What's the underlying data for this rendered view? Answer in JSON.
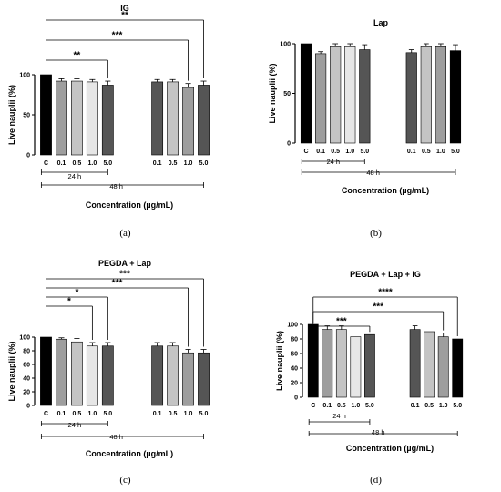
{
  "chart_data": [
    {
      "type": "bar",
      "panel_label": "(a)",
      "title": "IG",
      "ylabel": "Live nauplii (%)",
      "xlabel": "Concentration (µg/mL)",
      "ylim": [
        0,
        100
      ],
      "yticks": [
        0,
        50,
        100
      ],
      "groups": [
        {
          "label": "",
          "categories": [
            "C"
          ],
          "values": [
            100
          ],
          "errors": [
            0
          ],
          "colors": [
            "#000000"
          ]
        },
        {
          "label": "24 h",
          "categories": [
            "0.1",
            "0.5",
            "1.0",
            "5.0"
          ],
          "values": [
            92,
            92,
            91,
            87
          ],
          "errors": [
            3,
            3,
            3,
            5
          ],
          "colors": [
            "#9e9e9e",
            "#c4c4c4",
            "#e6e6e6",
            "#555555"
          ]
        },
        {
          "label": "48 h",
          "categories": [
            "0.1",
            "0.5",
            "1.0",
            "5.0"
          ],
          "values": [
            91,
            91,
            84,
            87
          ],
          "errors": [
            3,
            3,
            5,
            5
          ],
          "colors": [
            "#555555",
            "#c4c4c4",
            "#9e9e9e",
            "#555555"
          ]
        }
      ],
      "significance": [
        {
          "from": 0,
          "to": 4,
          "label": "**"
        },
        {
          "from": 0,
          "to": 7,
          "label": "***"
        },
        {
          "from": 0,
          "to": 8,
          "label": "**"
        }
      ]
    },
    {
      "type": "bar",
      "panel_label": "(b)",
      "title": "Lap",
      "ylabel": "Live nauplii (%)",
      "xlabel": "Concentration (µg/mL)",
      "ylim": [
        0,
        100
      ],
      "yticks": [
        0,
        50,
        100
      ],
      "groups": [
        {
          "label": "",
          "categories": [
            "C"
          ],
          "values": [
            100
          ],
          "errors": [
            0
          ],
          "colors": [
            "#000000"
          ]
        },
        {
          "label": "24 h",
          "categories": [
            "0.1",
            "0.5",
            "1.0",
            "5.0"
          ],
          "values": [
            90,
            97,
            97,
            94
          ],
          "errors": [
            2,
            3,
            3,
            5
          ],
          "colors": [
            "#9e9e9e",
            "#c4c4c4",
            "#e6e6e6",
            "#555555"
          ]
        },
        {
          "label": "48 h",
          "categories": [
            "0.1",
            "0.5",
            "1.0",
            "5.0"
          ],
          "values": [
            91,
            97,
            97,
            93
          ],
          "errors": [
            3,
            3,
            3,
            6
          ],
          "colors": [
            "#555555",
            "#c4c4c4",
            "#9e9e9e",
            "#000000"
          ]
        }
      ],
      "significance": []
    },
    {
      "type": "bar",
      "panel_label": "(c)",
      "title": "PEGDA + Lap",
      "ylabel": "Live nauplii (%)",
      "xlabel": "Concentration (µg/mL)",
      "ylim": [
        0,
        100
      ],
      "yticks": [
        0,
        20,
        40,
        60,
        80,
        100
      ],
      "groups": [
        {
          "label": "",
          "categories": [
            "C"
          ],
          "values": [
            100
          ],
          "errors": [
            0
          ],
          "colors": [
            "#000000"
          ]
        },
        {
          "label": "24 h",
          "categories": [
            "0.1",
            "0.5",
            "1.0",
            "5.0"
          ],
          "values": [
            97,
            93,
            87,
            87
          ],
          "errors": [
            2,
            5,
            5,
            5
          ],
          "colors": [
            "#9e9e9e",
            "#c4c4c4",
            "#e6e6e6",
            "#555555"
          ]
        },
        {
          "label": "48 h",
          "categories": [
            "0.1",
            "0.5",
            "1.0",
            "5.0"
          ],
          "values": [
            87,
            87,
            77,
            77
          ],
          "errors": [
            5,
            5,
            5,
            5
          ],
          "colors": [
            "#555555",
            "#c4c4c4",
            "#9e9e9e",
            "#555555"
          ]
        }
      ],
      "significance": [
        {
          "from": 0,
          "to": 3,
          "label": "*"
        },
        {
          "from": 0,
          "to": 4,
          "label": "*"
        },
        {
          "from": 0,
          "to": 7,
          "label": "***"
        },
        {
          "from": 0,
          "to": 8,
          "label": "***"
        }
      ]
    },
    {
      "type": "bar",
      "panel_label": "(d)",
      "title": "PEGDA + Lap  + IG",
      "ylabel": "Live nauplii (%)",
      "xlabel": "Concentration (µg/mL)",
      "ylim": [
        0,
        100
      ],
      "yticks": [
        0,
        20,
        40,
        60,
        80,
        100
      ],
      "groups": [
        {
          "label": "",
          "categories": [
            "C"
          ],
          "values": [
            100
          ],
          "errors": [
            0
          ],
          "colors": [
            "#000000"
          ]
        },
        {
          "label": "24 h",
          "categories": [
            "0.1",
            "0.5",
            "1.0",
            "5.0"
          ],
          "values": [
            93,
            93,
            83,
            86
          ],
          "errors": [
            5,
            5,
            0,
            0
          ],
          "colors": [
            "#9e9e9e",
            "#c4c4c4",
            "#e6e6e6",
            "#555555"
          ]
        },
        {
          "label": "48 h",
          "categories": [
            "0.1",
            "0.5",
            "1.0",
            "5.0"
          ],
          "values": [
            93,
            90,
            83,
            80
          ],
          "errors": [
            5,
            0,
            5,
            0
          ],
          "colors": [
            "#555555",
            "#c4c4c4",
            "#9e9e9e",
            "#000000"
          ]
        }
      ],
      "significance": [
        {
          "from": 0,
          "to": 4,
          "label": "***"
        },
        {
          "from": 0,
          "to": 7,
          "label": "***"
        },
        {
          "from": 0,
          "to": 8,
          "label": "****"
        }
      ]
    }
  ]
}
